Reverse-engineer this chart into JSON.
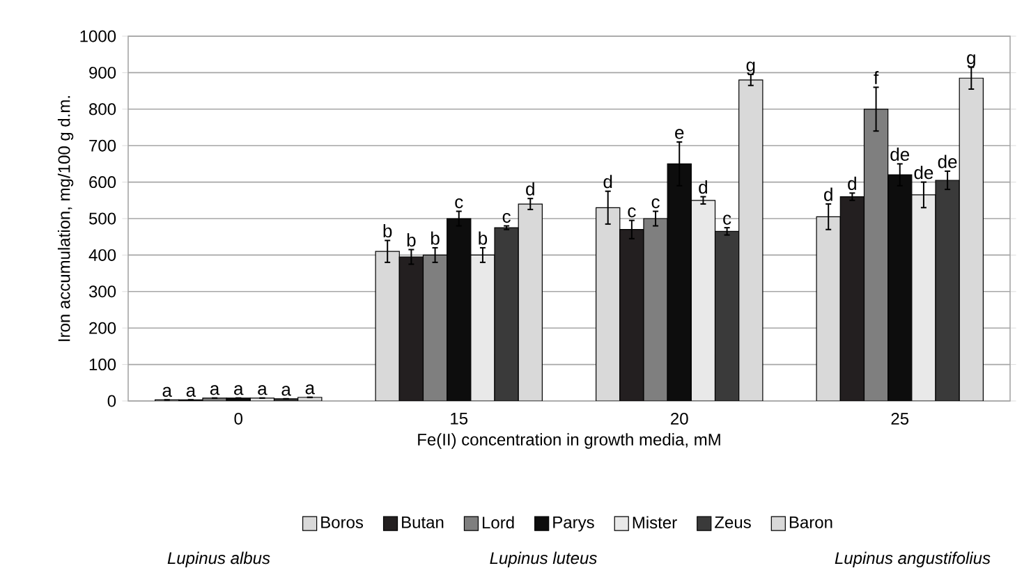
{
  "chart_data": {
    "type": "bar",
    "xlabel": "Fe(II) concentration in growth media, mM",
    "ylabel": "Iron accumulation, mg/100 g d.m.",
    "categories": [
      "0",
      "15",
      "20",
      "25"
    ],
    "series": [
      {
        "name": "Boros",
        "color": "#d9d9d9",
        "values": [
          3,
          410,
          530,
          505
        ],
        "errors": [
          null,
          30,
          45,
          35
        ],
        "value_labels": [
          "a",
          "b",
          "d",
          "d"
        ]
      },
      {
        "name": "Butan",
        "color": "#231f20",
        "values": [
          3,
          395,
          470,
          560
        ],
        "errors": [
          null,
          20,
          25,
          10
        ],
        "value_labels": [
          "a",
          "b",
          "c",
          "d"
        ]
      },
      {
        "name": "Lord",
        "color": "#7f7f7f",
        "values": [
          8,
          400,
          500,
          800
        ],
        "errors": [
          null,
          20,
          20,
          60
        ],
        "value_labels": [
          "a",
          "b",
          "c",
          "f"
        ]
      },
      {
        "name": "Parys",
        "color": "#0d0d0d",
        "values": [
          8,
          500,
          650,
          620
        ],
        "errors": [
          null,
          20,
          60,
          30
        ],
        "value_labels": [
          "a",
          "c",
          "e",
          "de"
        ]
      },
      {
        "name": "Mister",
        "color": "#e9e9e9",
        "values": [
          8,
          400,
          550,
          565
        ],
        "errors": [
          null,
          20,
          10,
          35
        ],
        "value_labels": [
          "a",
          "b",
          "d",
          "de"
        ]
      },
      {
        "name": "Zeus",
        "color": "#3a3a3a",
        "values": [
          6,
          475,
          465,
          605
        ],
        "errors": [
          null,
          5,
          10,
          25
        ],
        "value_labels": [
          "a",
          "c",
          "c",
          "de"
        ]
      },
      {
        "name": "Baron",
        "color": "#d9d9d9",
        "values": [
          10,
          540,
          880,
          885
        ],
        "errors": [
          null,
          15,
          15,
          30
        ],
        "value_labels": [
          "a",
          "d",
          "g",
          "g"
        ]
      }
    ],
    "ylim": [
      0,
      1000
    ],
    "yticks": [
      0,
      100,
      200,
      300,
      400,
      500,
      600,
      700,
      800,
      900,
      1000
    ],
    "grid": "y",
    "legend": "bottom",
    "annotations": [
      "*Lupinus albus*",
      "*Lupinus luteus*",
      "*Lupinus angustifolius*"
    ]
  }
}
